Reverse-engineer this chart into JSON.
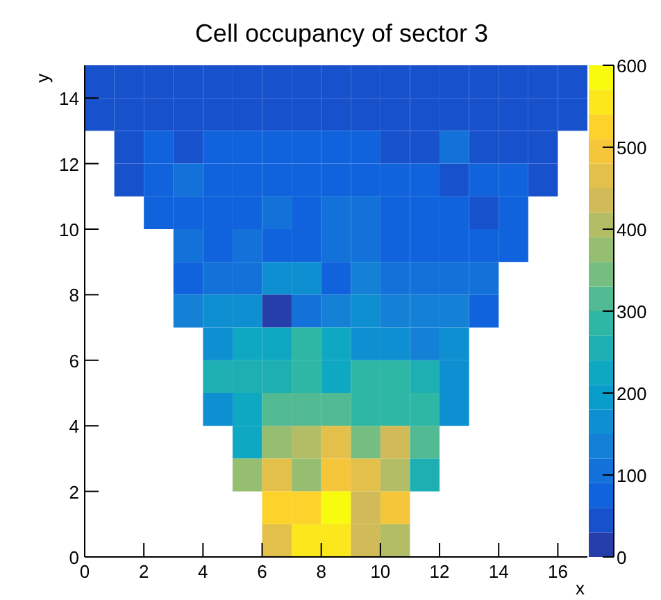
{
  "chart_data": {
    "type": "heatmap",
    "title": "Cell occupancy of sector 3",
    "xlabel": "x",
    "ylabel": "y",
    "xlim": [
      0,
      17
    ],
    "xticks": [
      0,
      2,
      4,
      6,
      8,
      10,
      12,
      14,
      16
    ],
    "ylim": [
      0,
      15
    ],
    "yticks": [
      0,
      2,
      4,
      6,
      8,
      10,
      12,
      14
    ],
    "clim": [
      0,
      600
    ],
    "cticks": [
      0,
      100,
      200,
      300,
      400,
      500,
      600
    ],
    "cells": [
      [
        50,
        50,
        50,
        50,
        50,
        50,
        50,
        50,
        50,
        50,
        50,
        50,
        50,
        50,
        50,
        50,
        50
      ],
      [
        50,
        50,
        50,
        50,
        50,
        50,
        50,
        50,
        50,
        50,
        50,
        50,
        50,
        50,
        50,
        50,
        50
      ],
      [
        null,
        50,
        80,
        50,
        80,
        80,
        80,
        80,
        80,
        80,
        50,
        50,
        100,
        50,
        50,
        50,
        null
      ],
      [
        null,
        50,
        80,
        100,
        80,
        80,
        80,
        80,
        80,
        80,
        80,
        80,
        50,
        80,
        80,
        50,
        null
      ],
      [
        null,
        null,
        80,
        80,
        80,
        80,
        100,
        80,
        100,
        100,
        80,
        80,
        80,
        50,
        80,
        null,
        null
      ],
      [
        null,
        null,
        null,
        100,
        75,
        100,
        75,
        75,
        100,
        100,
        80,
        80,
        80,
        80,
        80,
        null,
        null
      ],
      [
        null,
        null,
        null,
        80,
        100,
        100,
        170,
        170,
        80,
        140,
        110,
        110,
        110,
        110,
        null,
        null,
        null
      ],
      [
        null,
        null,
        null,
        130,
        160,
        160,
        15,
        100,
        130,
        160,
        130,
        130,
        130,
        80,
        null,
        null,
        null
      ],
      [
        null,
        null,
        null,
        null,
        170,
        210,
        210,
        270,
        210,
        170,
        170,
        140,
        170,
        null,
        null,
        null,
        null
      ],
      [
        null,
        null,
        null,
        null,
        240,
        240,
        240,
        270,
        230,
        275,
        275,
        240,
        170,
        null,
        null,
        null,
        null
      ],
      [
        null,
        null,
        null,
        null,
        170,
        230,
        300,
        300,
        300,
        270,
        270,
        270,
        170,
        null,
        null,
        null,
        null
      ],
      [
        null,
        null,
        null,
        null,
        null,
        220,
        370,
        400,
        460,
        330,
        430,
        300,
        null,
        null,
        null,
        null,
        null
      ],
      [
        null,
        null,
        null,
        null,
        null,
        360,
        460,
        360,
        500,
        470,
        400,
        260,
        null,
        null,
        null,
        null,
        null
      ],
      [
        null,
        null,
        null,
        null,
        null,
        null,
        530,
        530,
        600,
        430,
        500,
        null,
        null,
        null,
        null,
        null,
        null
      ],
      [
        null,
        null,
        null,
        null,
        null,
        null,
        470,
        560,
        560,
        430,
        390,
        null,
        null,
        null,
        null,
        null,
        null
      ]
    ]
  }
}
